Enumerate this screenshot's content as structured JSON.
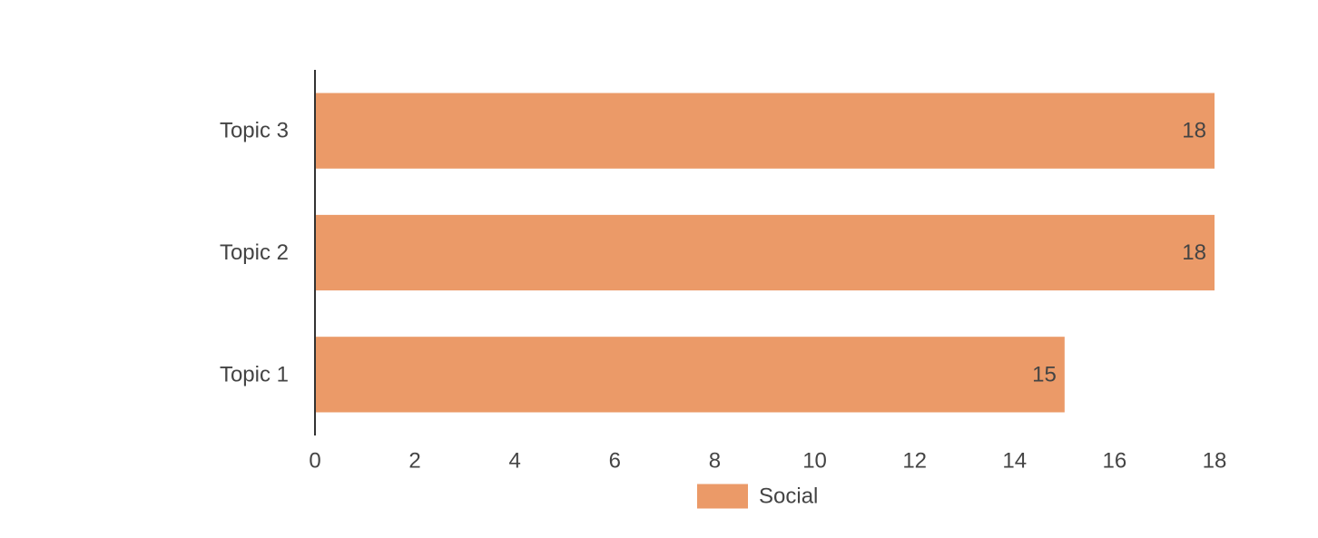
{
  "chart_data": {
    "type": "bar",
    "orientation": "horizontal",
    "categories": [
      "Topic 3",
      "Topic 2",
      "Topic 1"
    ],
    "series": [
      {
        "name": "Social",
        "values": [
          18,
          18,
          15
        ],
        "color": "#eb9a68"
      }
    ],
    "xlim": [
      0,
      18
    ],
    "xticks": [
      "0",
      "2",
      "4",
      "6",
      "8",
      "10",
      "12",
      "14",
      "16",
      "18"
    ],
    "data_labels": [
      "18",
      "18",
      "15"
    ],
    "grid": false,
    "legend_position": "bottom",
    "title": "",
    "xlabel": "",
    "ylabel": ""
  },
  "colors": {
    "bar": "#eb9a68",
    "axis": "#333333",
    "text": "#444444"
  }
}
